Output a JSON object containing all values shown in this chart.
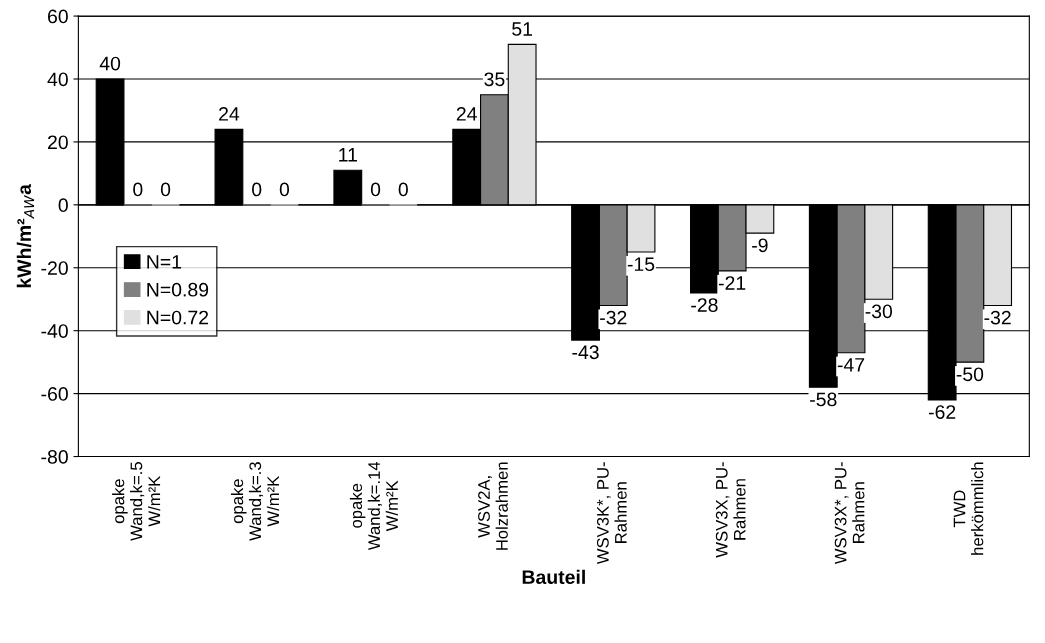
{
  "chart_data": {
    "type": "bar",
    "xlabel": "Bauteil",
    "ylabel": "kWh/m²$_{AW}$a",
    "categories": [
      "opake\nWand,k=.5\nW/m²K",
      "opake\nWand,k=.3\nW/m²K",
      "opake\nWand,k=.14\nW/m²K",
      "WSV2A,\nHolzrahmen",
      "WSV3K*, PU-\nRahmen",
      "WSV3X, PU-\nRahmen",
      "WSV3X*, PU-\nRahmen",
      "TWD\nherkömmlich"
    ],
    "series": [
      {
        "name": "N=1",
        "color": "#000000",
        "values": [
          40,
          24,
          11,
          24,
          -43,
          -28,
          -58,
          -62
        ]
      },
      {
        "name": "N=0.89",
        "color": "#808080",
        "values": [
          0,
          0,
          0,
          35,
          -32,
          -21,
          -47,
          -50
        ]
      },
      {
        "name": "N=0.72",
        "color": "#e0e0e0",
        "values": [
          0,
          0,
          0,
          51,
          -15,
          -9,
          -30,
          -32
        ]
      }
    ],
    "ylim": [
      -80,
      60
    ],
    "yticks": [
      -80,
      -60,
      -40,
      -20,
      0,
      20,
      40,
      60
    ],
    "grid": "y",
    "legend": "center left",
    "data_labels": true
  }
}
